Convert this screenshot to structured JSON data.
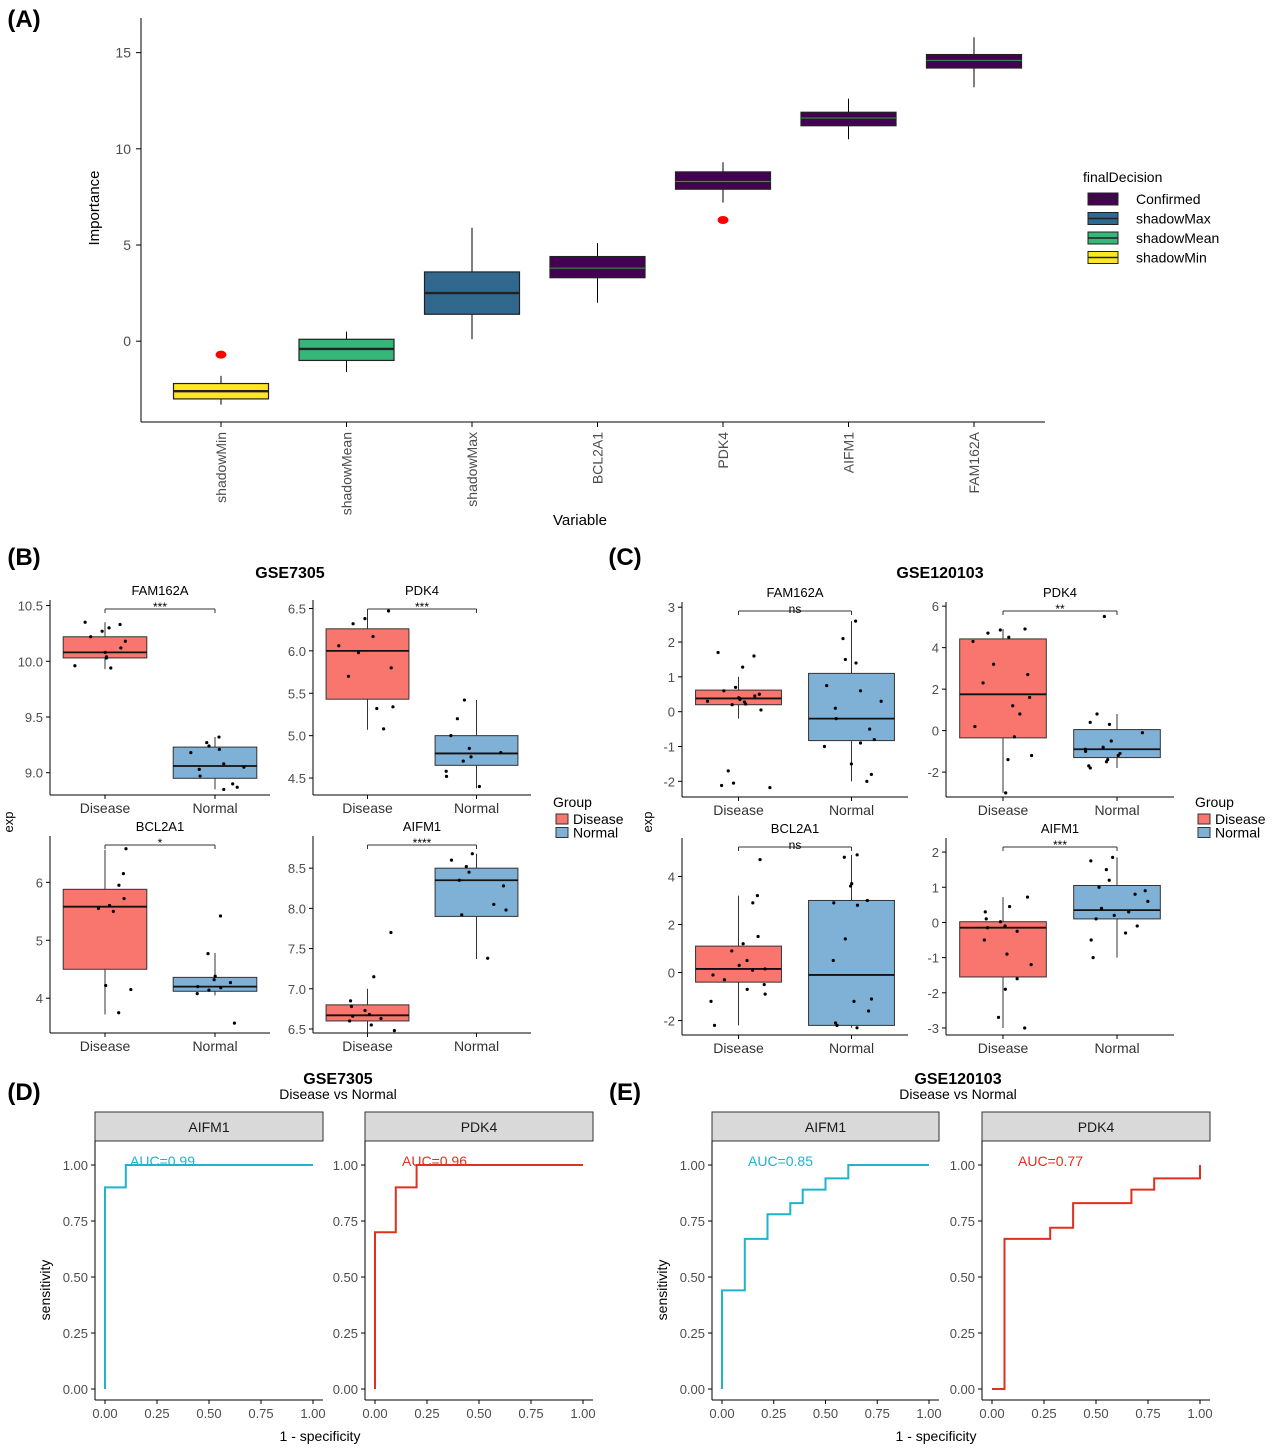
{
  "chart_data": [
    {
      "panel": "(A)",
      "type": "box",
      "xlabel": "Variable",
      "ylabel": "Importance",
      "ylim": [
        -4.2,
        16.8
      ],
      "yticks": [
        0,
        5,
        10,
        15
      ],
      "legend": {
        "title": "finalDecision",
        "placement": "right",
        "entries": [
          {
            "label": "Confirmed",
            "color": "#440154"
          },
          {
            "label": "shadowMax",
            "color": "#31688E"
          },
          {
            "label": "shadowMean",
            "color": "#35B779"
          },
          {
            "label": "shadowMin",
            "color": "#FDE725"
          }
        ]
      },
      "boxes": [
        {
          "category": "shadowMin",
          "group": "shadowMin",
          "min": -3.3,
          "q1": -3.0,
          "median": -2.6,
          "q3": -2.2,
          "max": -1.8,
          "outliers": [
            -0.7
          ]
        },
        {
          "category": "shadowMean",
          "group": "shadowMean",
          "min": -1.6,
          "q1": -1.0,
          "median": -0.4,
          "q3": 0.1,
          "max": 0.5,
          "outliers": []
        },
        {
          "category": "shadowMax",
          "group": "shadowMax",
          "min": 0.1,
          "q1": 1.4,
          "median": 2.5,
          "q3": 3.6,
          "max": 5.9,
          "outliers": []
        },
        {
          "category": "BCL2A1",
          "group": "Confirmed",
          "min": 2.0,
          "q1": 3.3,
          "median": 3.8,
          "q3": 4.4,
          "max": 5.1,
          "outliers": []
        },
        {
          "category": "PDK4",
          "group": "Confirmed",
          "min": 7.2,
          "q1": 7.9,
          "median": 8.3,
          "q3": 8.8,
          "max": 9.3,
          "outliers": [
            6.3
          ]
        },
        {
          "category": "AIFM1",
          "group": "Confirmed",
          "min": 10.5,
          "q1": 11.2,
          "median": 11.6,
          "q3": 11.9,
          "max": 12.6,
          "outliers": []
        },
        {
          "category": "FAM162A",
          "group": "Confirmed",
          "min": 13.2,
          "q1": 14.2,
          "median": 14.6,
          "q3": 14.9,
          "max": 15.8,
          "outliers": []
        }
      ]
    },
    {
      "panel": "(B)",
      "type": "box",
      "title": "GSE7305",
      "ylabel": "exp",
      "legend": {
        "title": "Group",
        "entries": [
          {
            "label": "Disease",
            "color": "#F8766D"
          },
          {
            "label": "Normal",
            "color": "#7FB0D5"
          }
        ]
      },
      "facets": [
        {
          "gene": "FAM162A",
          "sig": "***",
          "ylim": [
            8.8,
            10.55
          ],
          "yticks": [
            9.0,
            9.5,
            10.0,
            10.5
          ],
          "groups": [
            {
              "name": "Disease",
              "min": 9.93,
              "q1": 10.03,
              "median": 10.08,
              "q3": 10.22,
              "max": 10.35,
              "points": [
                10.35,
                10.33,
                10.3,
                10.27,
                10.22,
                10.18,
                10.12,
                10.08,
                10.04,
                10.03,
                9.96,
                9.94
              ]
            },
            {
              "name": "Normal",
              "min": 8.85,
              "q1": 8.95,
              "median": 9.06,
              "q3": 9.23,
              "max": 9.32,
              "points": [
                9.32,
                9.27,
                9.24,
                9.21,
                9.18,
                9.08,
                9.05,
                9.03,
                8.97,
                8.9,
                8.87,
                8.85
              ]
            }
          ]
        },
        {
          "gene": "PDK4",
          "sig": "***",
          "ylim": [
            4.3,
            6.6
          ],
          "yticks": [
            4.5,
            5.0,
            5.5,
            6.0,
            6.5
          ],
          "groups": [
            {
              "name": "Disease",
              "min": 5.07,
              "q1": 5.43,
              "median": 6.0,
              "q3": 6.26,
              "max": 6.48,
              "points": [
                6.47,
                6.38,
                6.32,
                6.17,
                6.06,
                5.98,
                5.8,
                5.7,
                5.34,
                5.32,
                5.08
              ]
            },
            {
              "name": "Normal",
              "min": 4.38,
              "q1": 4.65,
              "median": 4.79,
              "q3": 5.0,
              "max": 5.42,
              "points": [
                5.42,
                5.2,
                5.0,
                4.85,
                4.8,
                4.75,
                4.7,
                4.58,
                4.52,
                4.4
              ]
            }
          ]
        },
        {
          "gene": "BCL2A1",
          "sig": "*",
          "ylim": [
            3.4,
            6.8
          ],
          "yticks": [
            4,
            5,
            6
          ],
          "groups": [
            {
              "name": "Disease",
              "min": 3.72,
              "q1": 4.5,
              "median": 5.58,
              "q3": 5.88,
              "max": 6.56,
              "points": [
                6.58,
                6.15,
                5.95,
                5.72,
                5.6,
                5.55,
                5.5,
                4.22,
                4.15,
                3.75
              ]
            },
            {
              "name": "Normal",
              "min": 4.05,
              "q1": 4.12,
              "median": 4.2,
              "q3": 4.36,
              "max": 4.78,
              "points": [
                5.42,
                4.77,
                4.38,
                4.32,
                4.27,
                4.2,
                4.18,
                4.14,
                4.08,
                3.57
              ]
            }
          ]
        },
        {
          "gene": "AIFM1",
          "sig": "****",
          "ylim": [
            6.45,
            8.9
          ],
          "yticks": [
            6.5,
            7.0,
            7.5,
            8.0,
            8.5
          ],
          "groups": [
            {
              "name": "Disease",
              "min": 6.45,
              "q1": 6.6,
              "median": 6.67,
              "q3": 6.8,
              "max": 7.0,
              "points": [
                7.7,
                7.15,
                6.85,
                6.78,
                6.73,
                6.68,
                6.66,
                6.63,
                6.6,
                6.55,
                6.48
              ]
            },
            {
              "name": "Normal",
              "min": 7.37,
              "q1": 7.9,
              "median": 8.35,
              "q3": 8.5,
              "max": 8.68,
              "points": [
                8.68,
                8.6,
                8.52,
                8.45,
                8.35,
                8.28,
                8.05,
                7.98,
                7.92,
                7.38
              ]
            }
          ]
        }
      ],
      "xticks": [
        "Disease",
        "Normal"
      ]
    },
    {
      "panel": "(C)",
      "type": "box",
      "title": "GSE120103",
      "ylabel": "exp",
      "legend": {
        "title": "Group",
        "entries": [
          {
            "label": "Disease",
            "color": "#F8766D"
          },
          {
            "label": "Normal",
            "color": "#7FB0D5"
          }
        ]
      },
      "facets": [
        {
          "gene": "FAM162A",
          "sig": "ns",
          "ylim": [
            -2.45,
            3.15
          ],
          "yticks": [
            -2,
            -1,
            0,
            1,
            2,
            3
          ],
          "groups": [
            {
              "name": "Disease",
              "min": -0.2,
              "q1": 0.2,
              "median": 0.38,
              "q3": 0.62,
              "max": 1.0,
              "points": [
                1.7,
                1.6,
                1.28,
                0.7,
                0.6,
                0.5,
                0.45,
                0.4,
                0.38,
                0.35,
                0.3,
                0.28,
                0.22,
                0.2,
                0.05,
                -1.7,
                -2.05,
                -2.12,
                -2.18
              ]
            },
            {
              "name": "Normal",
              "min": -2.0,
              "q1": -0.83,
              "median": -0.2,
              "q3": 1.1,
              "max": 2.6,
              "points": [
                2.6,
                2.1,
                1.5,
                1.4,
                0.75,
                0.6,
                0.3,
                0.1,
                -0.2,
                -0.5,
                -0.8,
                -0.9,
                -1.0,
                -1.5,
                -1.8,
                -2.0
              ]
            }
          ]
        },
        {
          "gene": "PDK4",
          "sig": "**",
          "ylim": [
            -3.2,
            6.2
          ],
          "yticks": [
            -2,
            0,
            2,
            4,
            6
          ],
          "groups": [
            {
              "name": "Disease",
              "min": -3.0,
              "q1": -0.35,
              "median": 1.75,
              "q3": 4.42,
              "max": 4.9,
              "points": [
                4.9,
                4.85,
                4.7,
                4.5,
                4.3,
                3.2,
                2.7,
                2.3,
                1.6,
                1.2,
                0.8,
                0.2,
                -0.3,
                -1.2,
                -1.4,
                -3.0
              ]
            },
            {
              "name": "Normal",
              "min": -1.8,
              "q1": -1.3,
              "median": -0.9,
              "q3": 0.05,
              "max": 0.8,
              "points": [
                5.5,
                0.8,
                0.4,
                0.3,
                -0.1,
                -0.5,
                -0.8,
                -0.9,
                -1.0,
                -1.1,
                -1.2,
                -1.4,
                -1.5,
                -1.7,
                -1.8
              ]
            }
          ]
        },
        {
          "gene": "BCL2A1",
          "sig": "ns",
          "ylim": [
            -2.6,
            5.6
          ],
          "yticks": [
            -2,
            0,
            2,
            4
          ],
          "groups": [
            {
              "name": "Disease",
              "min": -2.2,
              "q1": -0.4,
              "median": 0.15,
              "q3": 1.1,
              "max": 3.2,
              "points": [
                4.7,
                3.2,
                2.9,
                1.5,
                1.2,
                0.9,
                0.5,
                0.3,
                0.15,
                0.1,
                -0.1,
                -0.3,
                -0.5,
                -0.7,
                -0.9,
                -1.2,
                -2.2
              ]
            },
            {
              "name": "Normal",
              "min": -2.3,
              "q1": -2.2,
              "median": -0.1,
              "q3": 3.0,
              "max": 4.9,
              "points": [
                4.9,
                4.8,
                3.7,
                3.6,
                3.0,
                2.9,
                2.8,
                1.4,
                0.5,
                -1.1,
                -1.2,
                -1.6,
                -2.1,
                -2.2,
                -2.3
              ]
            }
          ]
        },
        {
          "gene": "AIFM1",
          "sig": "***",
          "ylim": [
            -3.2,
            2.4
          ],
          "yticks": [
            -3,
            -2,
            -1,
            0,
            1,
            2
          ],
          "groups": [
            {
              "name": "Disease",
              "min": -3.0,
              "q1": -1.55,
              "median": -0.15,
              "q3": 0.02,
              "max": 0.72,
              "points": [
                0.72,
                0.45,
                0.3,
                0.1,
                0.02,
                -0.1,
                -0.15,
                -0.25,
                -0.5,
                -0.9,
                -1.2,
                -1.6,
                -1.9,
                -2.7,
                -3.0
              ]
            },
            {
              "name": "Normal",
              "min": -1.0,
              "q1": 0.1,
              "median": 0.35,
              "q3": 1.05,
              "max": 1.85,
              "points": [
                1.85,
                1.75,
                1.5,
                1.2,
                1.0,
                0.9,
                0.8,
                0.6,
                0.4,
                0.3,
                0.2,
                0.1,
                -0.1,
                -0.3,
                -0.5,
                -1.0
              ]
            }
          ]
        }
      ],
      "xticks": [
        "Disease",
        "Normal"
      ]
    },
    {
      "panel": "(D)",
      "type": "line",
      "title": "GSE7305",
      "subtitle": "Disease vs Normal",
      "xlabel": "1 - specificity",
      "ylabel": "sensitivity",
      "xlim": [
        0,
        1
      ],
      "ylim": [
        0,
        1
      ],
      "xticks": [
        "0.00",
        "0.25",
        "0.50",
        "0.75",
        "1.00"
      ],
      "yticks": [
        "0.00",
        "0.25",
        "0.50",
        "0.75",
        "1.00"
      ],
      "facets": [
        {
          "strip": "AIFM1",
          "auc_label": "AUC=0.99",
          "color": "#1FB3CC",
          "x": [
            0,
            0,
            0.1,
            0.1,
            1
          ],
          "y": [
            0,
            0.9,
            0.9,
            1.0,
            1.0
          ]
        },
        {
          "strip": "PDK4",
          "auc_label": "AUC=0.96",
          "color": "#E0301E",
          "x": [
            0,
            0,
            0.1,
            0.1,
            0.2,
            0.2,
            1
          ],
          "y": [
            0,
            0.7,
            0.7,
            0.9,
            0.9,
            1.0,
            1.0
          ]
        }
      ]
    },
    {
      "panel": "(E)",
      "type": "line",
      "title": "GSE120103",
      "subtitle": "Disease vs Normal",
      "xlabel": "1 - specificity",
      "ylabel": "sensitivity",
      "xlim": [
        0,
        1
      ],
      "ylim": [
        0,
        1
      ],
      "xticks": [
        "0.00",
        "0.25",
        "0.50",
        "0.75",
        "1.00"
      ],
      "yticks": [
        "0.00",
        "0.25",
        "0.50",
        "0.75",
        "1.00"
      ],
      "facets": [
        {
          "strip": "AIFM1",
          "auc_label": "AUC=0.85",
          "color": "#1FB3CC",
          "x": [
            0,
            0,
            0.11,
            0.11,
            0.22,
            0.22,
            0.33,
            0.33,
            0.39,
            0.39,
            0.5,
            0.5,
            0.61,
            0.61,
            1
          ],
          "y": [
            0,
            0.44,
            0.44,
            0.67,
            0.67,
            0.78,
            0.78,
            0.83,
            0.83,
            0.89,
            0.89,
            0.94,
            0.94,
            1.0,
            1.0
          ]
        },
        {
          "strip": "PDK4",
          "auc_label": "AUC=0.77",
          "color": "#E0301E",
          "x": [
            0,
            0.06,
            0.06,
            0.28,
            0.28,
            0.39,
            0.39,
            0.67,
            0.67,
            0.78,
            0.78,
            1,
            1
          ],
          "y": [
            0,
            0,
            0.67,
            0.67,
            0.72,
            0.72,
            0.83,
            0.83,
            0.89,
            0.89,
            0.94,
            0.94,
            1.0
          ]
        }
      ]
    }
  ]
}
